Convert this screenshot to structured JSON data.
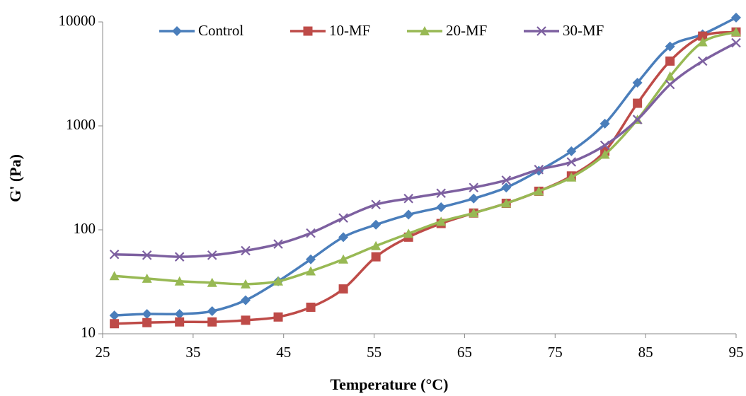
{
  "chart_data": {
    "type": "line",
    "xlabel": "Temperature (°C)",
    "ylabel": "G' (Pa)",
    "x": [
      26.3,
      29.9,
      33.5,
      37.1,
      40.8,
      44.4,
      48.0,
      51.6,
      55.2,
      58.8,
      62.4,
      66.0,
      69.6,
      73.2,
      76.8,
      80.5,
      84.1,
      87.7,
      91.3,
      95.0
    ],
    "series": [
      {
        "name": "Control",
        "color": "#4a7ebb",
        "marker": "diamond",
        "values": [
          15,
          15.5,
          15.5,
          16.5,
          21,
          32,
          52,
          85,
          112,
          140,
          165,
          200,
          255,
          370,
          570,
          1050,
          2600,
          5800,
          7600,
          11000
        ]
      },
      {
        "name": "10-MF",
        "color": "#be4b48",
        "marker": "square",
        "values": [
          12.5,
          12.8,
          13,
          13,
          13.5,
          14.5,
          18,
          27,
          55,
          85,
          115,
          145,
          180,
          235,
          330,
          570,
          1650,
          4200,
          7300,
          8000
        ]
      },
      {
        "name": "20-MF",
        "color": "#98b954",
        "marker": "triangle",
        "values": [
          36,
          34,
          32,
          31,
          30,
          32,
          40,
          52,
          70,
          92,
          120,
          145,
          180,
          235,
          320,
          530,
          1150,
          3000,
          6400,
          8000
        ]
      },
      {
        "name": "30-MF",
        "color": "#7d60a0",
        "marker": "cross",
        "values": [
          58,
          57,
          55,
          57,
          63,
          73,
          93,
          130,
          175,
          200,
          225,
          255,
          300,
          380,
          450,
          650,
          1150,
          2500,
          4200,
          6300
        ]
      }
    ],
    "xlim": [
      25,
      95
    ],
    "xticks": [
      25,
      35,
      45,
      55,
      65,
      75,
      85,
      95
    ],
    "ylim": [
      10,
      10000
    ],
    "yticks": [
      10,
      100,
      1000,
      10000
    ],
    "log_y": true,
    "legend": "top"
  }
}
